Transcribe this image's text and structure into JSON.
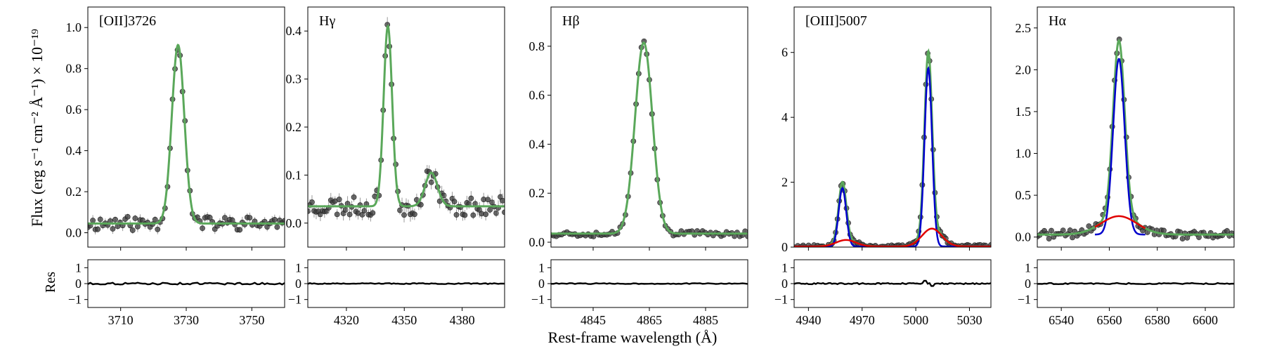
{
  "figure": {
    "xlabel": "Rest-frame wavelength (Å)",
    "ylabel_top": "Flux (erg s⁻¹ cm⁻² Å⁻¹) × 10⁻¹⁹",
    "ylabel_res": "Res"
  },
  "colors": {
    "data_points": "#3a3a3a",
    "total_fit": "#5aa85a",
    "narrow_component": "#0000cc",
    "broad_component": "#e00000",
    "residual": "#000000"
  },
  "chart_data": [
    {
      "type": "scatter",
      "title": "[OII]3726",
      "xlim": [
        3700,
        3760
      ],
      "ylim": [
        -0.07,
        1.1
      ],
      "xticks": [
        3710,
        3730,
        3750
      ],
      "yticks": [
        0.0,
        0.2,
        0.4,
        0.6,
        0.8,
        1.0
      ],
      "ytick_labels": [
        "0.0",
        "0.2",
        "0.4",
        "0.6",
        "0.8",
        "1.0"
      ],
      "fit": {
        "continuum": 0.045,
        "lines": [
          {
            "center": 3727.5,
            "amplitude": 0.87,
            "sigma": 1.9
          }
        ]
      },
      "points": {
        "x_start": 3700,
        "x_end": 3760,
        "count": 80,
        "noise": 0.035,
        "seed": 11
      },
      "residual_ylim": [
        -1.5,
        1.5
      ],
      "residual_yticks": [
        1,
        0,
        -1
      ],
      "residual_amplitude": 0.06
    },
    {
      "type": "scatter",
      "title": "Hγ",
      "xlim": [
        4300,
        4402
      ],
      "ylim": [
        -0.05,
        0.45
      ],
      "xticks": [
        4320,
        4350,
        4380
      ],
      "yticks": [
        0.0,
        0.1,
        0.2,
        0.3,
        0.4
      ],
      "ytick_labels": [
        "0.0",
        "0.1",
        "0.2",
        "0.3",
        "0.4"
      ],
      "fit": {
        "continuum": 0.035,
        "lines": [
          {
            "center": 4341.5,
            "amplitude": 0.375,
            "sigma": 2.2
          },
          {
            "center": 4364,
            "amplitude": 0.07,
            "sigma": 3.2
          }
        ]
      },
      "points": {
        "x_start": 4300,
        "x_end": 4402,
        "count": 95,
        "noise": 0.02,
        "seed": 23
      },
      "residual_ylim": [
        -1.5,
        1.5
      ],
      "residual_yticks": [
        1,
        0,
        -1
      ],
      "residual_amplitude": 0.03
    },
    {
      "type": "scatter",
      "title": "Hβ",
      "xlim": [
        4830,
        4900
      ],
      "ylim": [
        -0.02,
        0.96
      ],
      "xticks": [
        4845,
        4865,
        4885
      ],
      "yticks": [
        0.0,
        0.2,
        0.4,
        0.6,
        0.8
      ],
      "ytick_labels": [
        "0.0",
        "0.2",
        "0.4",
        "0.6",
        "0.8"
      ],
      "fit": {
        "continuum": 0.035,
        "lines": [
          {
            "center": 4863,
            "amplitude": 0.78,
            "sigma": 3.1
          }
        ]
      },
      "points": {
        "x_start": 4830,
        "x_end": 4900,
        "count": 75,
        "noise": 0.012,
        "seed": 37
      },
      "residual_ylim": [
        -1.5,
        1.5
      ],
      "residual_yticks": [
        1,
        0,
        -1
      ],
      "residual_amplitude": 0.03
    },
    {
      "type": "scatter",
      "title": "[OIII]5007",
      "xlim": [
        4932,
        5042
      ],
      "ylim": [
        0,
        7.4
      ],
      "xticks": [
        4940,
        4970,
        5000,
        5030
      ],
      "yticks": [
        0,
        2,
        4,
        6
      ],
      "ytick_labels": [
        "0",
        "2",
        "4",
        "6"
      ],
      "fit": {
        "continuum": 0.02,
        "lines": [
          {
            "center": 4959,
            "amplitude": 1.8,
            "sigma": 2.1
          },
          {
            "center": 5007,
            "amplitude": 5.5,
            "sigma": 2.1
          },
          {
            "center": 4961,
            "amplitude": 0.2,
            "sigma": 5.5
          },
          {
            "center": 5009,
            "amplitude": 0.55,
            "sigma": 5.5
          }
        ]
      },
      "narrow": [
        {
          "center": 4959,
          "amplitude": 1.8,
          "sigma": 2.1
        },
        {
          "center": 5007,
          "amplitude": 5.5,
          "sigma": 2.1
        }
      ],
      "broad": [
        {
          "center": 4961,
          "amplitude": 0.2,
          "sigma": 5.5
        },
        {
          "center": 5009,
          "amplitude": 0.55,
          "sigma": 5.5
        }
      ],
      "points": {
        "x_start": 4932,
        "x_end": 5042,
        "count": 110,
        "noise": 0.05,
        "seed": 53
      },
      "residual_ylim": [
        -1.5,
        1.5
      ],
      "residual_yticks": [
        1,
        0,
        -1
      ],
      "residual_amplitude": 0.04,
      "residual_spikes": [
        5005,
        5009
      ]
    },
    {
      "type": "scatter",
      "title": "Hα",
      "xlim": [
        6530,
        6612
      ],
      "ylim": [
        -0.12,
        2.75
      ],
      "xticks": [
        6540,
        6560,
        6580,
        6600
      ],
      "yticks": [
        0.0,
        0.5,
        1.0,
        1.5,
        2.0,
        2.5
      ],
      "ytick_labels": [
        "0.0",
        "0.5",
        "1.0",
        "1.5",
        "2.0",
        "2.5"
      ],
      "fit": {
        "continuum": 0.03,
        "lines": [
          {
            "center": 6564,
            "amplitude": 2.1,
            "sigma": 2.4
          },
          {
            "center": 6564,
            "amplitude": 0.22,
            "sigma": 7.5
          }
        ]
      },
      "narrow": [
        {
          "center": 6564,
          "amplitude": 2.1,
          "sigma": 2.4
        }
      ],
      "broad": [
        {
          "center": 6564,
          "amplitude": 0.22,
          "sigma": 7.5
        }
      ],
      "component_range": [
        6554,
        6575
      ],
      "points": {
        "x_start": 6530,
        "x_end": 6612,
        "count": 85,
        "noise": 0.05,
        "seed": 71
      },
      "residual_ylim": [
        -1.5,
        1.5
      ],
      "residual_yticks": [
        1,
        0,
        -1
      ],
      "residual_amplitude": 0.04
    }
  ]
}
